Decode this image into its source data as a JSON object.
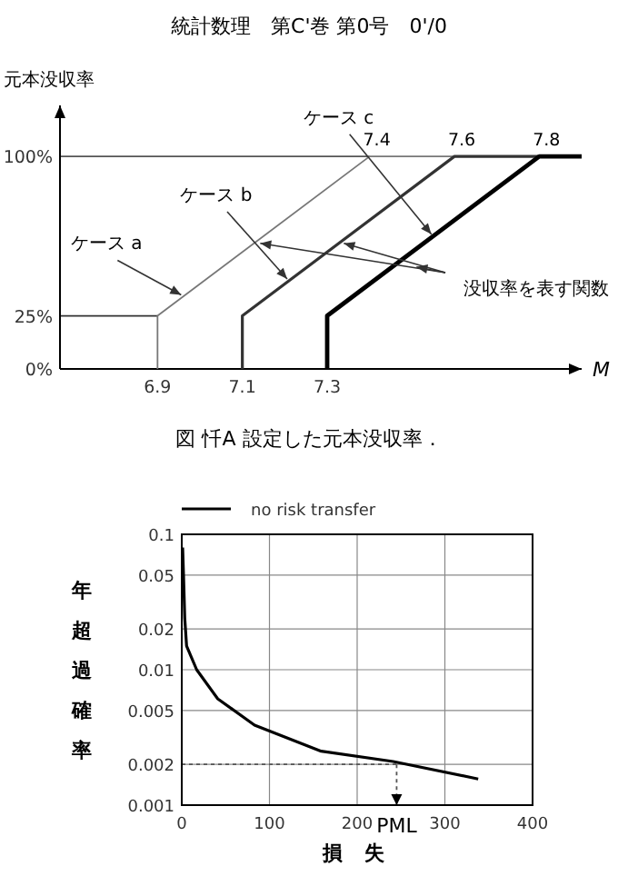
{
  "chart_data": [
    {
      "type": "line",
      "title": "図 忏A 設定した元本没収率．",
      "xlabel": "M",
      "ylabel": "元本没収率",
      "xlim": [
        6.67,
        7.9
      ],
      "ylim": [
        0,
        124
      ],
      "xticks": [
        6.9,
        7.1,
        7.3
      ],
      "yticks": [
        {
          "value": 0,
          "label": "0%"
        },
        {
          "value": 25,
          "label": "25%"
        },
        {
          "value": 100,
          "label": "100%"
        }
      ],
      "grid": false,
      "legend": false,
      "series": [
        {
          "name": "ケース a",
          "color": "#777777",
          "x": [
            6.9,
            6.9,
            7.4,
            7.9
          ],
          "values": [
            0,
            25,
            100,
            100
          ]
        },
        {
          "name": "ケース b",
          "color": "#333333",
          "x": [
            7.1,
            7.1,
            7.6,
            7.9
          ],
          "values": [
            0,
            25,
            100,
            100
          ]
        },
        {
          "name": "ケース c",
          "color": "#000000",
          "x": [
            7.3,
            7.3,
            7.8,
            7.9
          ],
          "values": [
            0,
            25,
            100,
            100
          ]
        }
      ],
      "ref_lines": [
        {
          "axis": "y",
          "value": 25,
          "color": "#333333"
        },
        {
          "axis": "y",
          "value": 100,
          "color": "#555555"
        }
      ],
      "annotations": [
        "統計数理　第C'巻 第0号　0'/0",
        {
          "text": "没収率を表す関数",
          "x": 7.335,
          "y": 60
        },
        {
          "text": "7.4",
          "x": 7.4,
          "y": 100
        },
        {
          "text": "7.6",
          "x": 7.6,
          "y": 100
        },
        {
          "text": "7.8",
          "x": 7.8,
          "y": 100
        }
      ]
    },
    {
      "type": "line",
      "xlabel": "損 失",
      "ylabel": "年超過確率",
      "log": "y",
      "xlim": [
        0,
        400
      ],
      "ylim": [
        0.001,
        0.1
      ],
      "xticks": [
        0,
        100,
        200,
        300,
        400
      ],
      "yticks": [
        0.001,
        0.002,
        0.005,
        0.01,
        0.02,
        0.05,
        0.1
      ],
      "grid": true,
      "legend": "top",
      "series": [
        {
          "name": "no risk transfer",
          "color": "#000000",
          "x": [
            1,
            2,
            3.4,
            5.5,
            17,
            41,
            83,
            159,
            241,
            338
          ],
          "values": [
            0.08,
            0.05,
            0.024,
            0.015,
            0.01,
            0.0061,
            0.0039,
            0.0025,
            0.0021,
            0.00156
          ]
        }
      ],
      "ref_lines": [
        {
          "axis": "y",
          "value": 0.002,
          "line_style": "dotted",
          "color": "#555555"
        },
        {
          "axis": "x",
          "value": 245,
          "label": "PML",
          "line_style": "dotted",
          "color": "#555555"
        }
      ]
    }
  ]
}
